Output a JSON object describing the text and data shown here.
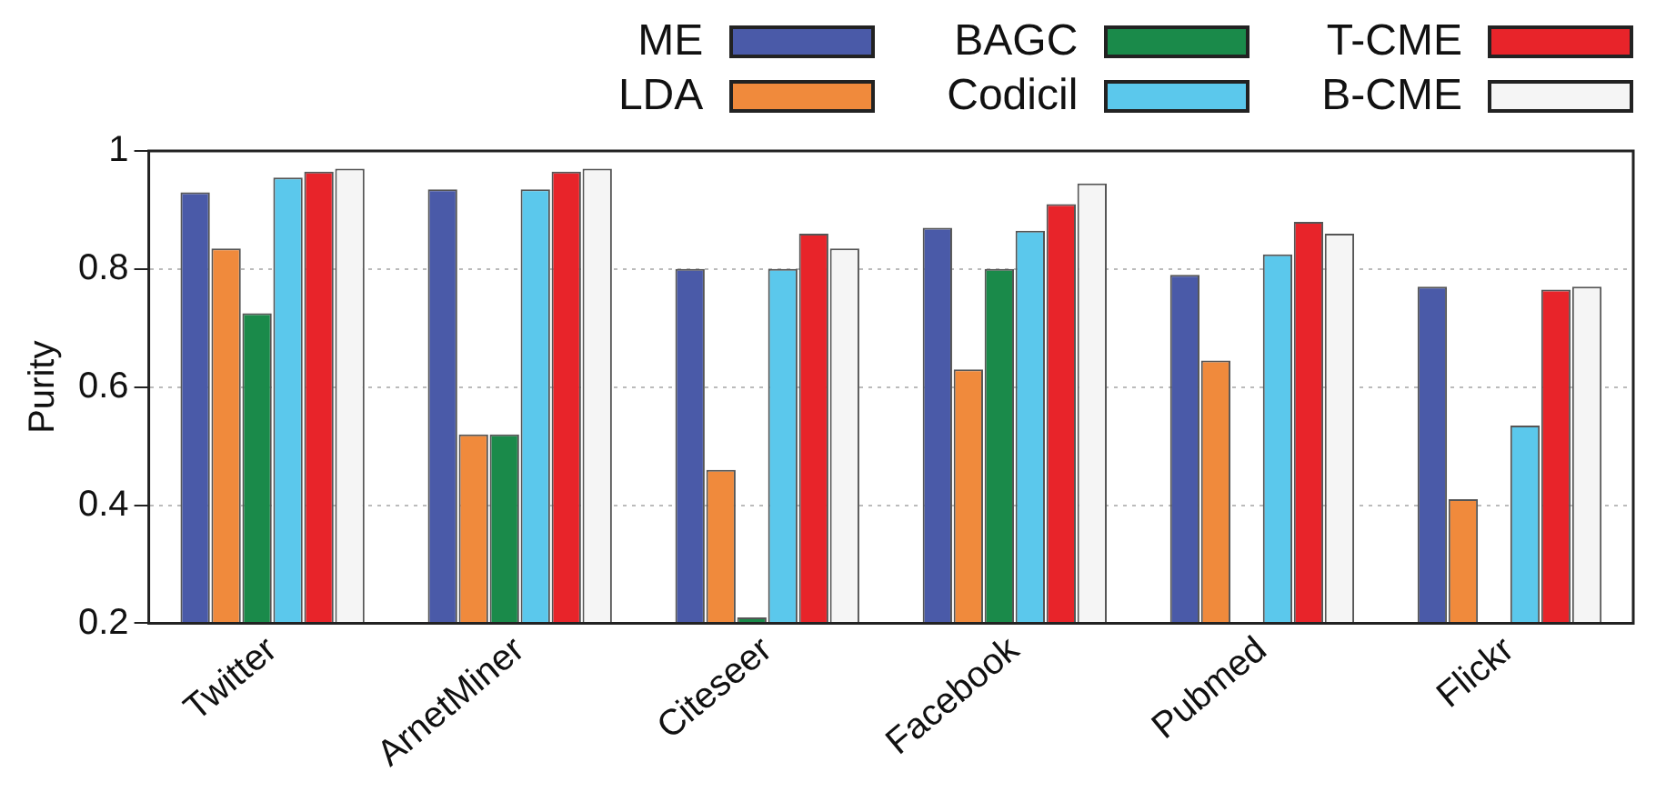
{
  "chart_data": {
    "type": "bar",
    "ylabel": "Purity",
    "categories": [
      "Twitter",
      "ArnetMiner",
      "Citeseer",
      "Facebook",
      "Pubmed",
      "Flickr"
    ],
    "series": [
      {
        "name": "ME",
        "color": "#4a5aa8",
        "values": [
          0.93,
          0.935,
          0.8,
          0.87,
          0.79,
          0.77
        ]
      },
      {
        "name": "LDA",
        "color": "#f08a3c",
        "values": [
          0.835,
          0.52,
          0.46,
          0.63,
          0.645,
          0.41
        ]
      },
      {
        "name": "BAGC",
        "color": "#1a8a4a",
        "values": [
          0.725,
          0.52,
          0.21,
          0.8,
          null,
          null
        ]
      },
      {
        "name": "Codicil",
        "color": "#5bc8ec",
        "values": [
          0.955,
          0.935,
          0.8,
          0.865,
          0.825,
          0.535
        ]
      },
      {
        "name": "T-CME",
        "color": "#e8242a",
        "values": [
          0.965,
          0.965,
          0.86,
          0.91,
          0.88,
          0.765
        ]
      },
      {
        "name": "B-CME",
        "color": "#f5f5f5",
        "values": [
          0.97,
          0.97,
          0.835,
          0.945,
          0.86,
          0.77
        ]
      }
    ],
    "ylim": [
      0.2,
      1
    ],
    "yticks": [
      0.2,
      0.4,
      0.6,
      0.8,
      1
    ],
    "grid": "y",
    "legend": "top"
  }
}
